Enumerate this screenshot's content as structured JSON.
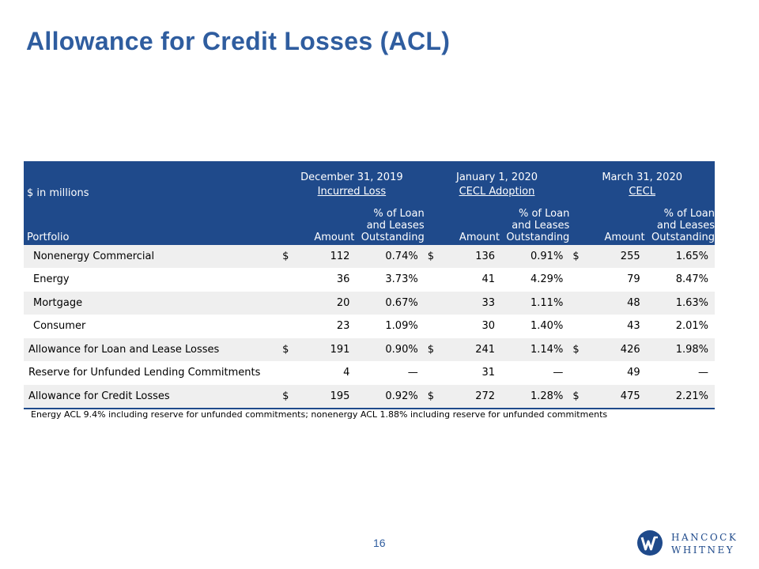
{
  "title": "Allowance for Credit Losses (ACL)",
  "table": {
    "units_label": "$ in millions",
    "portfolio_label": "Portfolio",
    "groups": [
      {
        "date": "December 31, 2019",
        "basis": "Incurred Loss"
      },
      {
        "date": "January 1, 2020",
        "basis": "CECL Adoption"
      },
      {
        "date": "March 31, 2020",
        "basis": "CECL"
      }
    ],
    "amount_label": "Amount",
    "pct_label_1": "% of Loan",
    "pct_label_2": "and Leases",
    "pct_label_3": "Outstanding",
    "rows": [
      {
        "label": "Nonenergy Commercial",
        "cells": [
          {
            "dollar": "$",
            "amount": "112",
            "pct": "0.74%"
          },
          {
            "dollar": "$",
            "amount": "136",
            "pct": "0.91%"
          },
          {
            "dollar": "$",
            "amount": "255",
            "pct": "1.65%"
          }
        ]
      },
      {
        "label": "Energy",
        "cells": [
          {
            "dollar": "",
            "amount": "36",
            "pct": "3.73%"
          },
          {
            "dollar": "",
            "amount": "41",
            "pct": "4.29%"
          },
          {
            "dollar": "",
            "amount": "79",
            "pct": "8.47%"
          }
        ]
      },
      {
        "label": "Mortgage",
        "cells": [
          {
            "dollar": "",
            "amount": "20",
            "pct": "0.67%"
          },
          {
            "dollar": "",
            "amount": "33",
            "pct": "1.11%"
          },
          {
            "dollar": "",
            "amount": "48",
            "pct": "1.63%"
          }
        ]
      },
      {
        "label": "Consumer",
        "cells": [
          {
            "dollar": "",
            "amount": "23",
            "pct": "1.09%"
          },
          {
            "dollar": "",
            "amount": "30",
            "pct": "1.40%"
          },
          {
            "dollar": "",
            "amount": "43",
            "pct": "2.01%"
          }
        ]
      },
      {
        "label": "Allowance for Loan and Lease Losses",
        "cells": [
          {
            "dollar": "$",
            "amount": "191",
            "pct": "0.90%"
          },
          {
            "dollar": "$",
            "amount": "241",
            "pct": "1.14%"
          },
          {
            "dollar": "$",
            "amount": "426",
            "pct": "1.98%"
          }
        ]
      },
      {
        "label": "Reserve for Unfunded Lending Commitments",
        "cells": [
          {
            "dollar": "",
            "amount": "4",
            "pct": "—"
          },
          {
            "dollar": "",
            "amount": "31",
            "pct": "—"
          },
          {
            "dollar": "",
            "amount": "49",
            "pct": "—"
          }
        ]
      },
      {
        "label": "Allowance for Credit Losses",
        "cells": [
          {
            "dollar": "$",
            "amount": "195",
            "pct": "0.92%"
          },
          {
            "dollar": "$",
            "amount": "272",
            "pct": "1.28%"
          },
          {
            "dollar": "$",
            "amount": "475",
            "pct": "2.21%"
          }
        ]
      }
    ]
  },
  "footnote": "Energy ACL 9.4% including reserve for unfunded commitments; nonenergy ACL 1.88% including reserve for unfunded commitments",
  "page_number": "16",
  "logo": {
    "line1": "HANCOCK",
    "line2": "WHITNEY",
    "mark_letter": "W"
  },
  "colors": {
    "brand_blue": "#1f4a8b",
    "title_blue": "#2f5d9f",
    "row_shade": "#efefef"
  }
}
